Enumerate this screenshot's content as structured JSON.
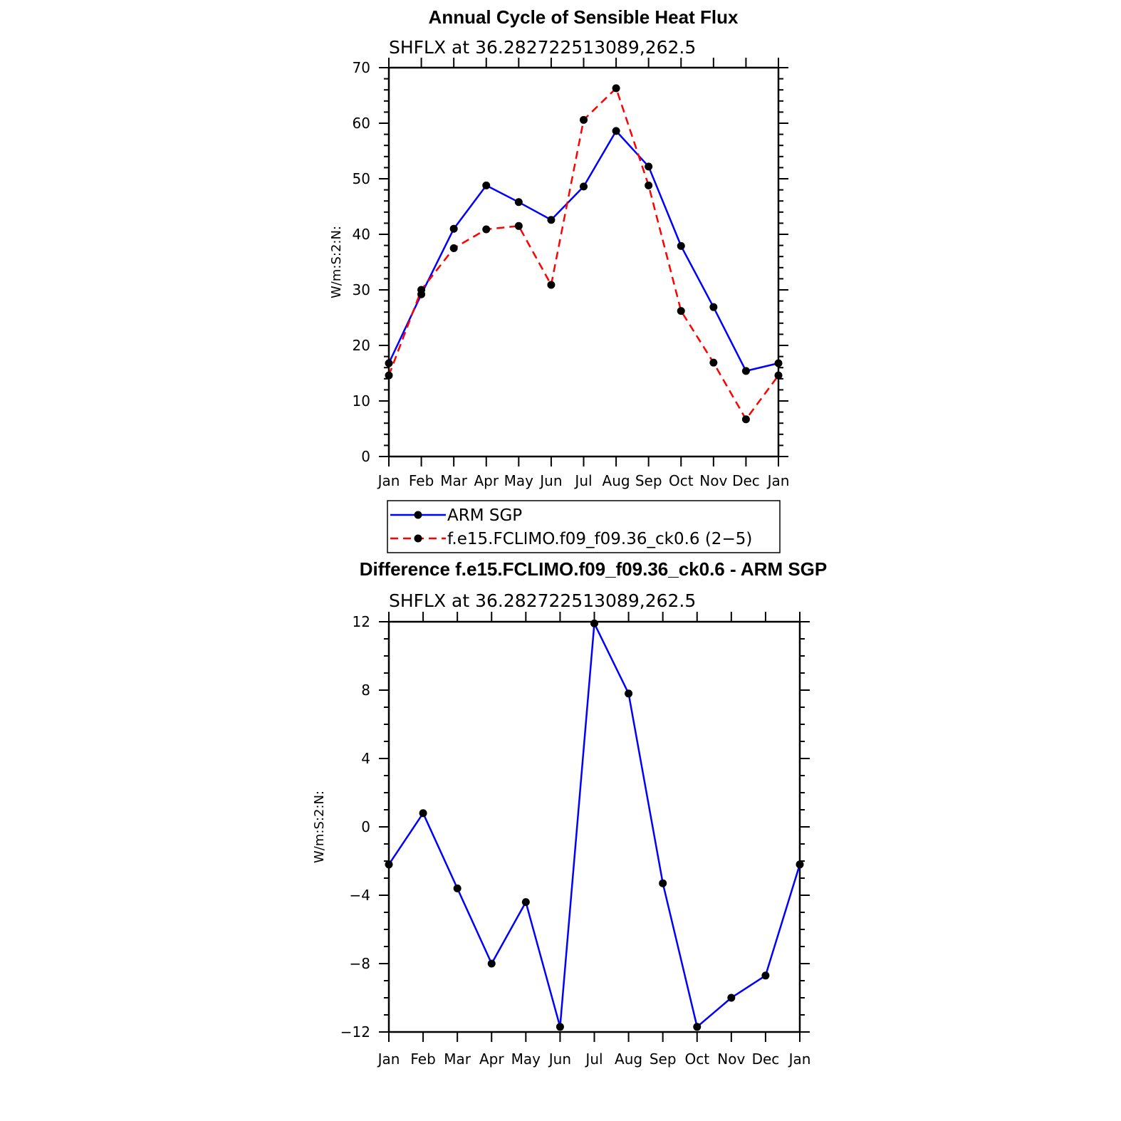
{
  "chart_data": [
    {
      "type": "line",
      "title": "Annual Cycle of Sensible Heat Flux",
      "subtitle": "SHFLX  at  36.282722513089,262.5",
      "ylabel": "W/m:S:2:N:",
      "xlabel": "",
      "categories": [
        "Jan",
        "Feb",
        "Mar",
        "Apr",
        "May",
        "Jun",
        "Jul",
        "Aug",
        "Sep",
        "Oct",
        "Nov",
        "Dec",
        "Jan"
      ],
      "ylim": [
        0,
        70
      ],
      "yticks": [
        0,
        10,
        20,
        30,
        40,
        50,
        60,
        70
      ],
      "ytick_labels": [
        "0",
        "10",
        "20",
        "30",
        "40",
        "50",
        "60",
        "70"
      ],
      "series": [
        {
          "name": "ARM SGP",
          "color": "#0000ff",
          "dash": "solid",
          "values": [
            16.8,
            29.2,
            41.0,
            48.8,
            45.8,
            42.6,
            48.6,
            58.6,
            52.2,
            37.9,
            26.9,
            15.4,
            16.8
          ]
        },
        {
          "name": "f.e15.FCLIMO.f09_f09.36_ck0.6 (2−5)",
          "color": "#ff0000",
          "dash": "dashed",
          "values": [
            14.6,
            30.0,
            37.5,
            40.9,
            41.5,
            30.9,
            60.6,
            66.3,
            48.8,
            26.2,
            16.9,
            6.7,
            14.6
          ]
        }
      ],
      "legend_position": "below"
    },
    {
      "type": "line",
      "title": "Difference f.e15.FCLIMO.f09_f09.36_ck0.6 - ARM SGP",
      "subtitle": "SHFLX  at  36.282722513089,262.5",
      "ylabel": "W/m:S:2:N:",
      "xlabel": "",
      "categories": [
        "Jan",
        "Feb",
        "Mar",
        "Apr",
        "May",
        "Jun",
        "Jul",
        "Aug",
        "Sep",
        "Oct",
        "Nov",
        "Dec",
        "Jan"
      ],
      "ylim": [
        -12,
        12
      ],
      "yticks": [
        -12,
        -8,
        -4,
        0,
        4,
        8,
        12
      ],
      "ytick_labels": [
        "−12",
        "−8",
        "−4",
        "0",
        "4",
        "8",
        "12"
      ],
      "series": [
        {
          "color": "#0000ff",
          "dash": "solid",
          "values": [
            -2.2,
            0.8,
            -3.6,
            -8.0,
            -4.4,
            -11.7,
            11.9,
            7.8,
            -3.3,
            -11.7,
            -10.0,
            -8.7,
            -2.2
          ]
        }
      ]
    }
  ]
}
